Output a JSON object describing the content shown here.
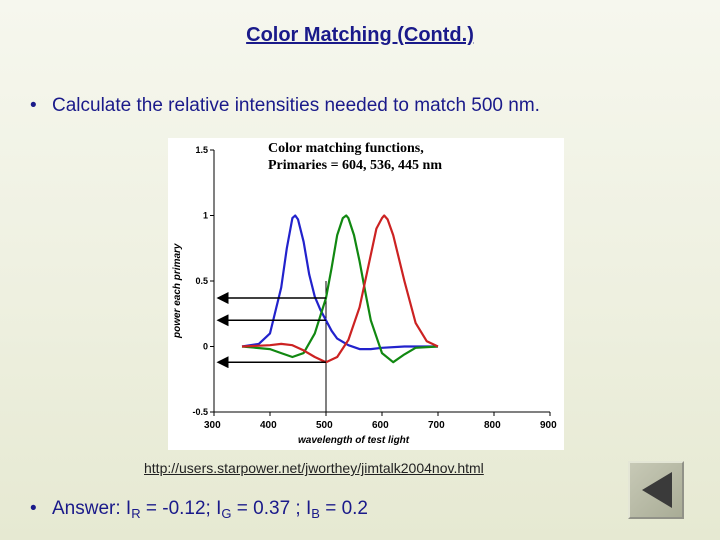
{
  "slide": {
    "title": "Color Matching (Contd.)",
    "bullet_1": "Calculate the relative intensities needed to match 500 nm.",
    "bullet_2": {
      "prefix": "Answer: I",
      "r_sub": "R",
      "r_value": " = -0.12; I",
      "g_sub": "G",
      "g_value": " = 0.37 ; I",
      "b_sub": "B",
      "b_value": " = 0.2"
    },
    "bullet_symbol": "•",
    "link": "http://users.starpower.net/jworthey/jimtalk2004nov.html"
  },
  "navigation": {
    "back_icon": "back-triangle-icon"
  },
  "chart_data": {
    "type": "line",
    "title": "Color matching functions,",
    "subtitle": "Primaries = 604, 536, 445 nm",
    "xlabel": "wavelength of test light",
    "ylabel": "power each primary",
    "xlim": [
      300,
      900
    ],
    "ylim": [
      -0.5,
      1.5
    ],
    "xticks": [
      "300",
      "400",
      "500",
      "600",
      "700",
      "800",
      "900"
    ],
    "yticks": [
      "-0.5",
      "0",
      "0.5",
      "1",
      "1.5"
    ],
    "marker_x": 500,
    "arrows_y": [
      0.37,
      0.2,
      -0.12
    ],
    "series": [
      {
        "color": "#2222cc",
        "x": [
          350,
          380,
          400,
          420,
          430,
          440,
          445,
          450,
          460,
          470,
          480,
          490,
          500,
          510,
          520,
          540,
          560,
          580,
          600,
          640,
          700
        ],
        "y": [
          0,
          0.02,
          0.1,
          0.45,
          0.75,
          0.98,
          1.0,
          0.97,
          0.8,
          0.55,
          0.38,
          0.28,
          0.2,
          0.12,
          0.06,
          0.01,
          -0.02,
          -0.02,
          -0.01,
          0,
          0
        ]
      },
      {
        "color": "#118811",
        "x": [
          350,
          400,
          420,
          440,
          460,
          480,
          500,
          510,
          520,
          530,
          536,
          540,
          550,
          560,
          570,
          580,
          600,
          620,
          640,
          660,
          700
        ],
        "y": [
          0,
          -0.02,
          -0.05,
          -0.08,
          -0.05,
          0.1,
          0.37,
          0.6,
          0.85,
          0.98,
          1.0,
          0.98,
          0.85,
          0.65,
          0.42,
          0.2,
          -0.05,
          -0.12,
          -0.06,
          -0.01,
          0
        ]
      },
      {
        "color": "#cc2222",
        "x": [
          350,
          400,
          420,
          440,
          460,
          480,
          500,
          520,
          540,
          560,
          580,
          590,
          600,
          604,
          610,
          620,
          640,
          660,
          680,
          700
        ],
        "y": [
          0,
          0.01,
          0.02,
          0.01,
          -0.03,
          -0.08,
          -0.12,
          -0.08,
          0.05,
          0.3,
          0.7,
          0.9,
          0.98,
          1.0,
          0.97,
          0.85,
          0.5,
          0.18,
          0.04,
          0
        ]
      }
    ]
  }
}
